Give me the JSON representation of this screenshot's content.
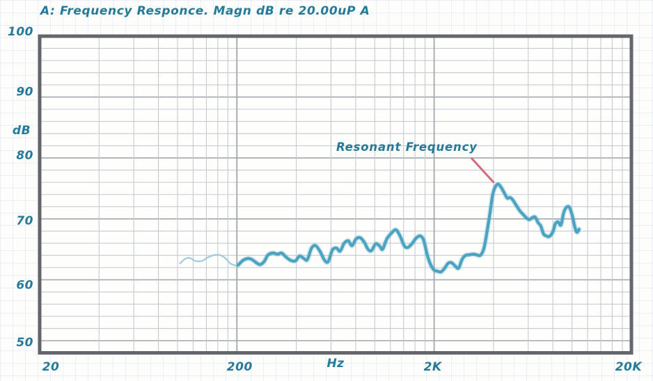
{
  "chart_data": {
    "type": "line",
    "title": "A: Frequency Responce. Magn dB re 20.00uP A",
    "xlabel": "Hz",
    "ylabel": "dB",
    "x_axis": {
      "unit": "Hz",
      "scale": "log",
      "range": [
        20,
        20000
      ],
      "ticks": [
        {
          "label": "20",
          "value": 20
        },
        {
          "label": "200",
          "value": 200
        },
        {
          "label": "2K",
          "value": 2000
        },
        {
          "label": "20K",
          "value": 20000
        }
      ],
      "minor_grid_multipliers": [
        2,
        3,
        4,
        5,
        6,
        7,
        8,
        9
      ]
    },
    "y_axis": {
      "unit": "dB",
      "scale": "linear",
      "range": [
        48,
        100
      ],
      "major_ticks": [
        {
          "label": "100",
          "value": 100
        },
        {
          "label": "90",
          "value": 90
        },
        {
          "label": "80",
          "value": 80
        },
        {
          "label": "70",
          "value": 70
        },
        {
          "label": "60",
          "value": 60
        },
        {
          "label": "50",
          "value": 50
        }
      ],
      "minor_step": 2
    },
    "grid": "on",
    "legend": "none",
    "annotation": {
      "label": "Resonant Frequency",
      "target": {
        "freq_hz": 4227,
        "db": 75.7
      }
    },
    "series": [
      {
        "name": "A: Frequency Response",
        "points": [
          [
            103,
            62.7
          ],
          [
            109,
            63.4
          ],
          [
            115,
            63.6
          ],
          [
            123,
            63.1
          ],
          [
            133,
            63.1
          ],
          [
            141,
            63.6
          ],
          [
            148,
            63.9
          ],
          [
            157,
            64.1
          ],
          [
            166,
            64.0
          ],
          [
            174,
            63.6
          ],
          [
            185,
            62.7
          ],
          [
            194,
            62.4
          ],
          [
            203,
            62.4
          ],
          [
            215,
            63.2
          ],
          [
            228,
            63.5
          ],
          [
            239,
            63.3
          ],
          [
            251,
            62.8
          ],
          [
            262,
            62.5
          ],
          [
            275,
            63.0
          ],
          [
            288,
            64.1
          ],
          [
            306,
            64.4
          ],
          [
            321,
            64.2
          ],
          [
            337,
            64.4
          ],
          [
            353,
            63.8
          ],
          [
            374,
            63.2
          ],
          [
            396,
            63.1
          ],
          [
            416,
            63.9
          ],
          [
            437,
            63.5
          ],
          [
            455,
            63.3
          ],
          [
            478,
            65.2
          ],
          [
            501,
            65.6
          ],
          [
            527,
            64.7
          ],
          [
            557,
            63.2
          ],
          [
            581,
            63.0
          ],
          [
            610,
            64.9
          ],
          [
            640,
            65.2
          ],
          [
            667,
            64.7
          ],
          [
            700,
            66.0
          ],
          [
            734,
            66.4
          ],
          [
            766,
            65.6
          ],
          [
            804,
            66.7
          ],
          [
            845,
            66.9
          ],
          [
            887,
            66.1
          ],
          [
            925,
            65.0
          ],
          [
            962,
            64.8
          ],
          [
            1011,
            65.9
          ],
          [
            1061,
            65.5
          ],
          [
            1096,
            65.0
          ],
          [
            1151,
            66.7
          ],
          [
            1219,
            67.7
          ],
          [
            1280,
            68.2
          ],
          [
            1343,
            67.2
          ],
          [
            1410,
            65.6
          ],
          [
            1469,
            65.3
          ],
          [
            1542,
            65.9
          ],
          [
            1618,
            66.8
          ],
          [
            1699,
            67.2
          ],
          [
            1770,
            66.5
          ],
          [
            1845,
            64.1
          ],
          [
            1919,
            62.5
          ],
          [
            2000,
            61.6
          ],
          [
            2084,
            61.4
          ],
          [
            2169,
            61.3
          ],
          [
            2260,
            61.9
          ],
          [
            2354,
            62.7
          ],
          [
            2449,
            62.8
          ],
          [
            2552,
            62.3
          ],
          [
            2659,
            61.9
          ],
          [
            2768,
            63.3
          ],
          [
            2884,
            64.0
          ],
          [
            3005,
            64.1
          ],
          [
            3155,
            64.2
          ],
          [
            3287,
            64.1
          ],
          [
            3423,
            64.0
          ],
          [
            3565,
            65.0
          ],
          [
            3682,
            67.3
          ],
          [
            3837,
            70.9
          ],
          [
            3964,
            74.0
          ],
          [
            4094,
            75.3
          ],
          [
            4227,
            75.7
          ],
          [
            4366,
            75.2
          ],
          [
            4548,
            74.2
          ],
          [
            4698,
            73.4
          ],
          [
            4853,
            73.5
          ],
          [
            5012,
            73.1
          ],
          [
            5223,
            72.2
          ],
          [
            5445,
            71.3
          ],
          [
            5663,
            70.7
          ],
          [
            5902,
            70.1
          ],
          [
            6096,
            69.9
          ],
          [
            6295,
            70.2
          ],
          [
            6502,
            70.3
          ],
          [
            6730,
            69.4
          ],
          [
            6950,
            68.8
          ],
          [
            7180,
            67.5
          ],
          [
            7412,
            67.2
          ],
          [
            7656,
            67.1
          ],
          [
            7980,
            67.8
          ],
          [
            8242,
            69.2
          ],
          [
            8511,
            69.5
          ],
          [
            8791,
            69.0
          ],
          [
            9078,
            71.0
          ],
          [
            9377,
            71.9
          ],
          [
            9706,
            71.9
          ],
          [
            10023,
            70.6
          ],
          [
            10352,
            68.6
          ],
          [
            10593,
            67.8
          ],
          [
            10866,
            68.3
          ]
        ]
      }
    ],
    "colors": {
      "ink_teal": "#257a99",
      "curve": "#4aa3c0",
      "curve_start_light": "#9dcbdb",
      "curve_halo": "rgba(100,170,195,0.28)",
      "annotation_line": "#d66a7d",
      "grid_minor": "#c6cad0",
      "grid_major": "#a2a7ad",
      "frame": "#63666a",
      "paper": "#fdfdfc"
    }
  }
}
